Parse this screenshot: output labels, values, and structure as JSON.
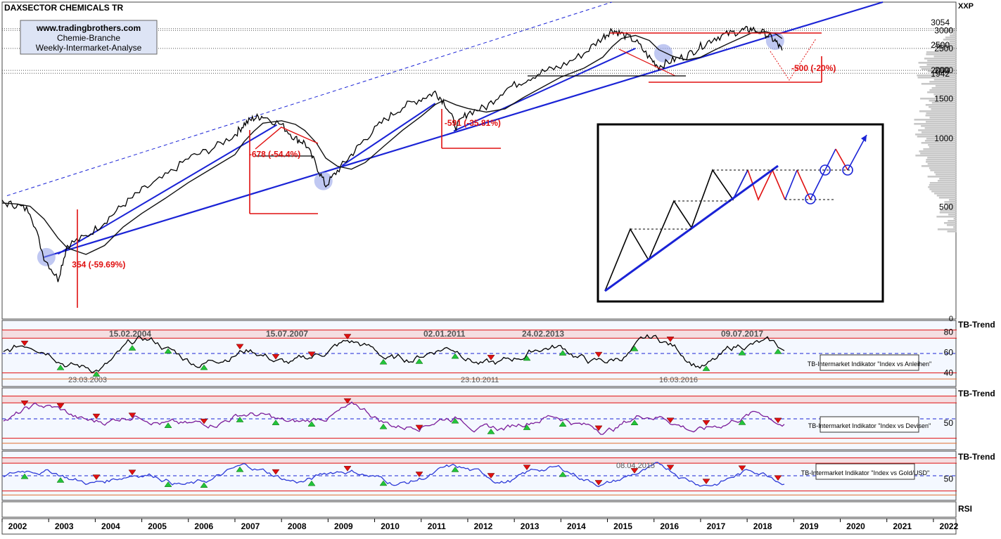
{
  "title": "DAXSECTOR CHEMICALS TR",
  "ticker": "XXP",
  "info_box": [
    "www.tradingbrothers.com",
    "Chemie-Branche",
    "Weekly-Intermarket-Analyse"
  ],
  "colors": {
    "accent_blue": "#1a23d6",
    "accent_red": "#e01010",
    "price": "#000000",
    "panel_bg": "#f4f8ff",
    "band_red": "#f3c3c3",
    "marker_green": "#22c43a",
    "indicator2": "#7a1c9a",
    "indicator3": "#2d3ad8"
  },
  "chart_data": [
    {
      "type": "line",
      "title": "DAXSECTOR CHEMICALS TR",
      "x_unit": "year",
      "y_scale": "log",
      "ylim": [
        160,
        4000
      ],
      "y_ticks": [
        500,
        1000,
        1500,
        2000,
        2500,
        3000
      ],
      "y_zero_label": "0",
      "price_markers": [
        "3054",
        "2500",
        "2000",
        "1942"
      ],
      "series": [
        {
          "x": [
            2002.0,
            2002.3,
            2002.6,
            2002.9,
            2003.2,
            2003.4,
            2003.8,
            2004.2,
            2004.6,
            2005.0,
            2005.5,
            2006.0,
            2006.5,
            2007.0,
            2007.2,
            2007.4,
            2007.6,
            2008.0,
            2008.3,
            2008.5,
            2008.75,
            2008.95,
            2009.2,
            2009.5,
            2009.8,
            2010.2,
            2010.6,
            2011.0,
            2011.3,
            2011.5,
            2011.75,
            2012.0,
            2012.4,
            2012.8,
            2013.2,
            2013.6,
            2014.0,
            2014.5,
            2014.9,
            2015.1,
            2015.3,
            2015.6,
            2015.9,
            2016.1,
            2016.4,
            2016.7,
            2017.0,
            2017.3,
            2017.6,
            2017.9,
            2018.1,
            2018.4,
            2018.6,
            2018.75
          ],
          "y": [
            520,
            510,
            480,
            300,
            240,
            340,
            370,
            430,
            510,
            590,
            680,
            820,
            900,
            1040,
            1160,
            1230,
            1260,
            1150,
            1000,
            960,
            760,
            620,
            720,
            850,
            1000,
            1200,
            1380,
            1500,
            1600,
            1450,
            1130,
            1300,
            1380,
            1650,
            1800,
            1970,
            2080,
            2380,
            2800,
            3020,
            2900,
            2700,
            2280,
            2080,
            2220,
            2320,
            2550,
            2780,
            2900,
            3000,
            3040,
            2900,
            2700,
            2450
          ]
        }
      ],
      "annotations": [
        {
          "label": "354 (-59.69%)",
          "x": 2003.5,
          "y": 270
        },
        {
          "label": "-678 (-54.4%)",
          "x": 2007.3,
          "y": 830
        },
        {
          "label": "-591 (-35.81%)",
          "x": 2011.5,
          "y": 1140
        },
        {
          "label": "-500 (-20%)",
          "x": 2018.95,
          "y": 1990
        }
      ]
    },
    {
      "type": "line",
      "title": "TB-Intermarket Indikator \"Index vs Anleihen\"",
      "axis_label": "TB-Trend",
      "y_ticks": [
        40,
        60,
        80
      ],
      "ylim": [
        28,
        90
      ],
      "dates": [
        "15.02.2004",
        "15.07.2007",
        "02.01.2011",
        "24.02.2013",
        "09.07.2017",
        "23.03.2003",
        "23.10.2011",
        "16.03.2016"
      ]
    },
    {
      "type": "line",
      "title": "TB-Intermarket Indikator \"Index vs Devisen\"",
      "axis_label": "TB-Trend",
      "y_ticks": [
        50
      ],
      "ylim": [
        20,
        90
      ]
    },
    {
      "type": "line",
      "title": "TB-Intermarket Indikator \"Index vs Gold/USD\"",
      "axis_label": "TB-Trend",
      "y_ticks": [
        50
      ],
      "ylim": [
        20,
        90
      ],
      "dates": [
        "08.04.2015"
      ]
    }
  ],
  "x_axis": {
    "years": [
      "2002",
      "2003",
      "2004",
      "2005",
      "2006",
      "2007",
      "2008",
      "2009",
      "2010",
      "2011",
      "2012",
      "2013",
      "2014",
      "2015",
      "2016",
      "2017",
      "2018",
      "2019",
      "2020",
      "2021",
      "2022"
    ]
  },
  "rsi_label": "RSI"
}
